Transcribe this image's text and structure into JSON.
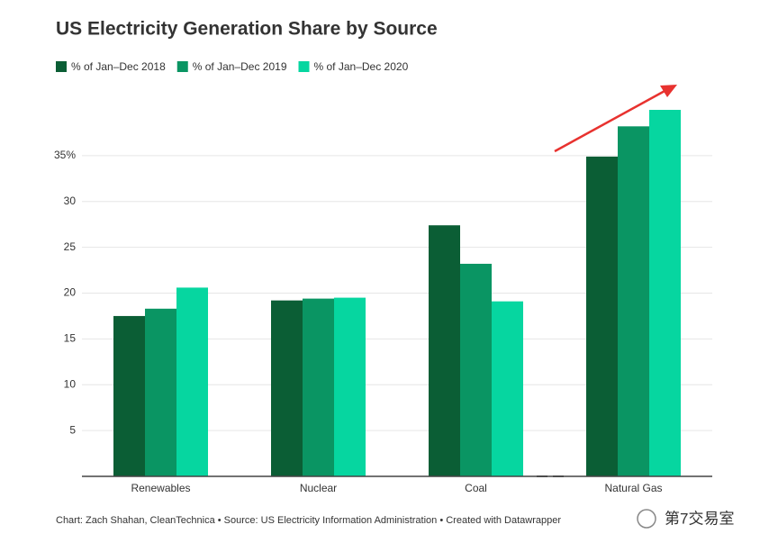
{
  "chart_data": {
    "type": "bar",
    "title": "US Electricity Generation Share by Source",
    "categories": [
      "Renewables",
      "Nuclear",
      "Coal",
      "Natural Gas"
    ],
    "series": [
      {
        "name": "% of Jan–Dec 2018",
        "color": "#0b5e35",
        "values": [
          17.5,
          19.2,
          27.4,
          34.9
        ]
      },
      {
        "name": "% of Jan–Dec 2019",
        "color": "#0a9563",
        "values": [
          18.3,
          19.4,
          23.2,
          38.2
        ]
      },
      {
        "name": "% of Jan–Dec 2020",
        "color": "#06d6a0",
        "values": [
          20.6,
          19.5,
          19.1,
          40.0
        ]
      }
    ],
    "ylim": [
      0,
      40
    ],
    "yticks": [
      5,
      10,
      15,
      20,
      25,
      30,
      {
        "value": 35,
        "label": "35%"
      }
    ],
    "grid": true,
    "legend": "top-left",
    "footer": "Chart: Zach Shahan, CleanTechnica • Source: US Electricity Information Administration • Created with Datawrapper",
    "watermark": "第7交易室"
  }
}
